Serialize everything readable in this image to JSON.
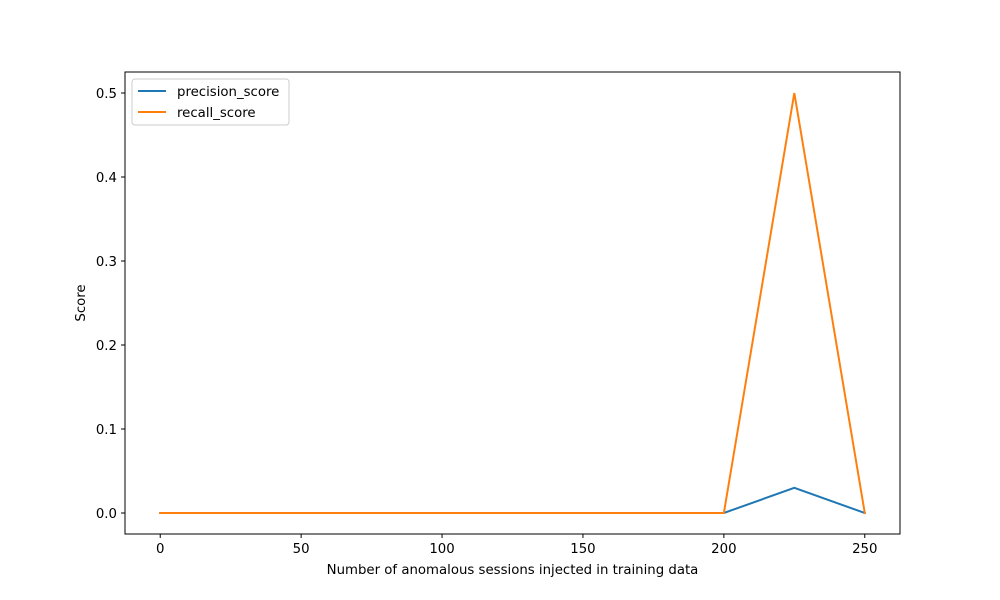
{
  "chart_data": {
    "type": "line",
    "title": "",
    "xlabel": "Number of anomalous sessions injected in training data",
    "ylabel": "Score",
    "x": [
      0,
      25,
      50,
      75,
      100,
      125,
      150,
      175,
      200,
      225,
      250
    ],
    "series": [
      {
        "name": "precision_score",
        "color": "#1f77b4",
        "values": [
          0,
          0,
          0,
          0,
          0,
          0,
          0,
          0,
          0,
          0.03,
          0
        ]
      },
      {
        "name": "recall_score",
        "color": "#ff7f0e",
        "values": [
          0,
          0,
          0,
          0,
          0,
          0,
          0,
          0,
          0,
          0.5,
          0
        ]
      }
    ],
    "xlim": [
      -12.5,
      262.5
    ],
    "ylim": [
      -0.025,
      0.525
    ],
    "xticks": [
      0,
      50,
      100,
      150,
      200,
      250
    ],
    "xtick_labels": [
      "0",
      "50",
      "100",
      "150",
      "200",
      "250"
    ],
    "yticks": [
      0.0,
      0.1,
      0.2,
      0.3,
      0.4,
      0.5
    ],
    "ytick_labels": [
      "0.0",
      "0.1",
      "0.2",
      "0.3",
      "0.4",
      "0.5"
    ],
    "legend_position": "top-left",
    "grid": false
  }
}
